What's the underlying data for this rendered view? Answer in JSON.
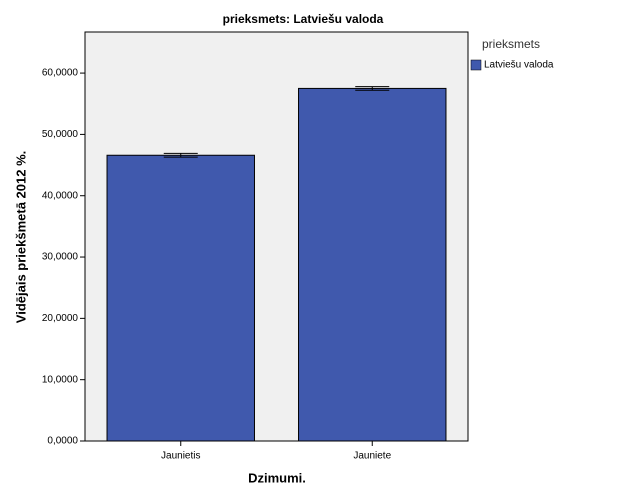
{
  "chart_data": {
    "type": "bar",
    "title": "prieksmets: Latviešu valoda",
    "x_label": "Dzimumi.",
    "y_label": "Vidējais priekšmetā 2012 %.",
    "legend_title": "prieksmets",
    "legend_position": "right",
    "categories": [
      "Jaunietis",
      "Jauniete"
    ],
    "series": [
      {
        "name": "Latviešu valoda",
        "color": "#4059ad",
        "values": [
          46.6,
          57.5
        ],
        "errors": [
          0.3,
          0.3
        ]
      }
    ],
    "ylim": [
      0,
      66.7
    ],
    "yticks": [
      {
        "value": 0,
        "label": "0,0000"
      },
      {
        "value": 10,
        "label": "10,0000"
      },
      {
        "value": 20,
        "label": "20,0000"
      },
      {
        "value": 30,
        "label": "30,0000"
      },
      {
        "value": 40,
        "label": "40,0000"
      },
      {
        "value": 50,
        "label": "50,0000"
      },
      {
        "value": 60,
        "label": "60,0000"
      }
    ]
  }
}
